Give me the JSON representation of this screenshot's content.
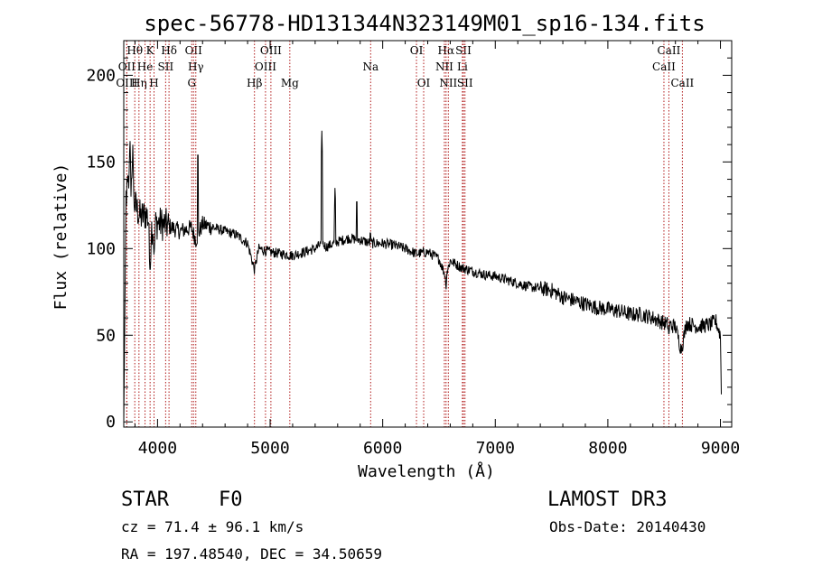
{
  "chart_data": {
    "type": "line",
    "title": "spec-56778-HD131344N323149M01_sp16-134.fits",
    "xlabel": "Wavelength (Å)",
    "ylabel": "Flux (relative)",
    "xlim": [
      3700,
      9100
    ],
    "ylim": [
      -3,
      220
    ],
    "x_ticks": [
      4000,
      5000,
      6000,
      7000,
      8000,
      9000
    ],
    "y_ticks": [
      0,
      50,
      100,
      150,
      200
    ],
    "spectrum_anchors": {
      "x": [
        3700,
        3720,
        3750,
        3800,
        3850,
        3900,
        3950,
        4000,
        4100,
        4200,
        4300,
        4340,
        4400,
        4500,
        4600,
        4700,
        4800,
        4860,
        4900,
        5000,
        5100,
        5200,
        5300,
        5400,
        5460,
        5500,
        5600,
        5700,
        5800,
        5900,
        6000,
        6100,
        6200,
        6300,
        6400,
        6500,
        6560,
        6600,
        6700,
        6800,
        6900,
        7000,
        7100,
        7200,
        7300,
        7400,
        7500,
        7600,
        7700,
        7800,
        7900,
        8000,
        8100,
        8200,
        8300,
        8400,
        8500,
        8600,
        8650,
        8700,
        8800,
        8900,
        8960,
        9000,
        9010
      ],
      "y": [
        0,
        130,
        140,
        125,
        118,
        120,
        112,
        115,
        113,
        110,
        112,
        105,
        114,
        112,
        110,
        108,
        103,
        88,
        100,
        98,
        97,
        96,
        98,
        100,
        103,
        101,
        104,
        106,
        105,
        103,
        103,
        102,
        100,
        97,
        98,
        94,
        84,
        93,
        89,
        87,
        85,
        84,
        82,
        80,
        78,
        77,
        76,
        72,
        70,
        68,
        66,
        65,
        64,
        62,
        62,
        60,
        57,
        55,
        42,
        57,
        55,
        56,
        58,
        50,
        8
      ]
    },
    "emission_spikes": [
      {
        "x": 5460,
        "y": 168
      },
      {
        "x": 5577,
        "y": 138
      },
      {
        "x": 5770,
        "y": 133
      },
      {
        "x": 4358,
        "y": 160
      },
      {
        "x": 3755,
        "y": 165
      },
      {
        "x": 3780,
        "y": 160
      },
      {
        "x": 5890,
        "y": 115
      }
    ],
    "absorption_dips": [
      {
        "x": 3934,
        "y": 85
      },
      {
        "x": 3969,
        "y": 95
      },
      {
        "x": 4861,
        "y": 86
      },
      {
        "x": 6563,
        "y": 75
      },
      {
        "x": 8542,
        "y": 48
      },
      {
        "x": 8662,
        "y": 38
      }
    ],
    "spectral_lines": [
      {
        "label": "Hθ",
        "x": 3798,
        "row": 0
      },
      {
        "label": "OII",
        "x": 3727,
        "row": 1
      },
      {
        "label": "Hη",
        "x": 3835,
        "row": 2
      },
      {
        "label": "OIII",
        "x": 3727,
        "row": 2
      },
      {
        "label": "He",
        "x": 3889,
        "row": 1
      },
      {
        "label": "K",
        "x": 3934,
        "row": 0
      },
      {
        "label": "H",
        "x": 3969,
        "row": 2
      },
      {
        "label": "SII",
        "x": 4072,
        "row": 1
      },
      {
        "label": "Hδ",
        "x": 4102,
        "row": 0
      },
      {
        "label": "OII",
        "x": 4320,
        "row": 0
      },
      {
        "label": "Hγ",
        "x": 4340,
        "row": 1
      },
      {
        "label": "G",
        "x": 4304,
        "row": 2
      },
      {
        "label": "Hβ",
        "x": 4861,
        "row": 2
      },
      {
        "label": "OIII",
        "x": 5007,
        "row": 0
      },
      {
        "label": "OIII",
        "x": 4959,
        "row": 1
      },
      {
        "label": "Mg",
        "x": 5175,
        "row": 2
      },
      {
        "label": "Na",
        "x": 5893,
        "row": 1
      },
      {
        "label": "OI",
        "x": 6300,
        "row": 0
      },
      {
        "label": "OI",
        "x": 6364,
        "row": 2
      },
      {
        "label": "Hα",
        "x": 6563,
        "row": 0
      },
      {
        "label": "NII",
        "x": 6548,
        "row": 1
      },
      {
        "label": "NII",
        "x": 6583,
        "row": 2
      },
      {
        "label": "SII",
        "x": 6717,
        "row": 0
      },
      {
        "label": "Li",
        "x": 6708,
        "row": 1
      },
      {
        "label": "SII",
        "x": 6731,
        "row": 2
      },
      {
        "label": "CaII",
        "x": 8542,
        "row": 0
      },
      {
        "label": "CaII",
        "x": 8498,
        "row": 1
      },
      {
        "label": "CaII",
        "x": 8662,
        "row": 2
      }
    ]
  },
  "info": {
    "object_class": "STAR",
    "spectral_type": "F0",
    "survey": "LAMOST DR3",
    "redshift": "cz =  71.4 ± 96.1 km/s",
    "obs_date": "Obs-Date: 20140430",
    "coords": "RA = 197.48540, DEC =  34.50659"
  }
}
